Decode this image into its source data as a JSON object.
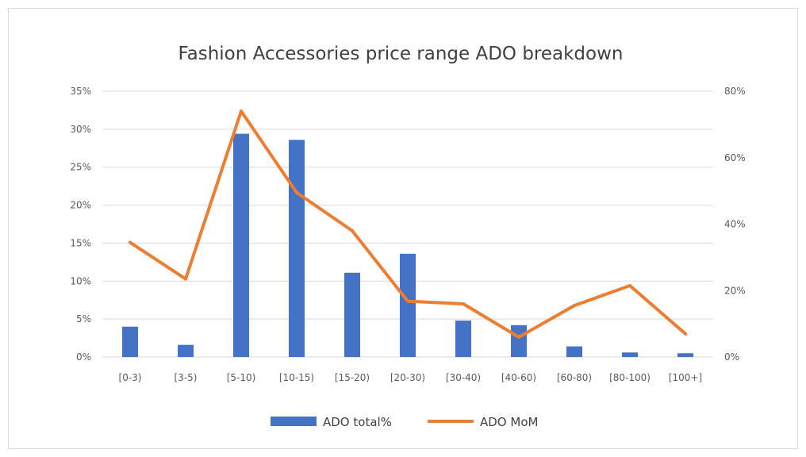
{
  "chart_data": {
    "type": "bar+line",
    "title": "Fashion  Accessories  price range ADO breakdown",
    "categories": [
      "[0-3)",
      "[3-5)",
      "[5-10)",
      "[10-15)",
      "[15-20)",
      "[20-30)",
      "[30-40)",
      "[40-60)",
      "[60-80)",
      "[80-100)",
      "[100+]"
    ],
    "series": [
      {
        "name": "ADO total%",
        "type": "bar",
        "axis": "left",
        "color": "#4472c4",
        "values": [
          0.04,
          0.016,
          0.294,
          0.286,
          0.111,
          0.136,
          0.048,
          0.042,
          0.014,
          0.006,
          0.005
        ]
      },
      {
        "name": "ADO MoM",
        "type": "line",
        "axis": "right",
        "color": "#ed7d31",
        "values": [
          0.345,
          0.235,
          0.74,
          0.495,
          0.38,
          0.168,
          0.16,
          0.06,
          0.155,
          0.215,
          0.07
        ]
      }
    ],
    "y_left": {
      "min": 0,
      "max": 0.35,
      "step": 0.05,
      "tick_labels": [
        "0%",
        "5%",
        "10%",
        "15%",
        "20%",
        "25%",
        "30%",
        "35%"
      ]
    },
    "y_right": {
      "min": 0,
      "max": 0.8,
      "step": 0.2,
      "tick_labels": [
        "0%",
        "20%",
        "40%",
        "60%",
        "80%"
      ]
    },
    "grid": true,
    "legend_position": "bottom"
  }
}
